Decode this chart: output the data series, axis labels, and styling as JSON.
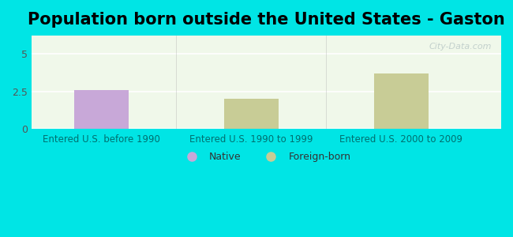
{
  "title": "Population born outside the United States - Gaston",
  "categories": [
    "Entered U.S. before 1990",
    "Entered U.S. 1990 to 1999",
    "Entered U.S. 2000 to 2009"
  ],
  "values": [
    2.6,
    2.0,
    3.7
  ],
  "bar_colors": [
    "#c8a8d8",
    "#c8cc96",
    "#c8cc96"
  ],
  "ylim": [
    0,
    6.2
  ],
  "yticks": [
    0,
    2.5,
    5
  ],
  "background_color": "#00e5e5",
  "plot_bg_color": "#f0f8ea",
  "grid_color": "#ffffff",
  "title_fontsize": 15,
  "legend_labels": [
    "Native",
    "Foreign-born"
  ],
  "legend_colors": [
    "#c8a8d8",
    "#c8cc96"
  ],
  "watermark": "City-Data.com"
}
